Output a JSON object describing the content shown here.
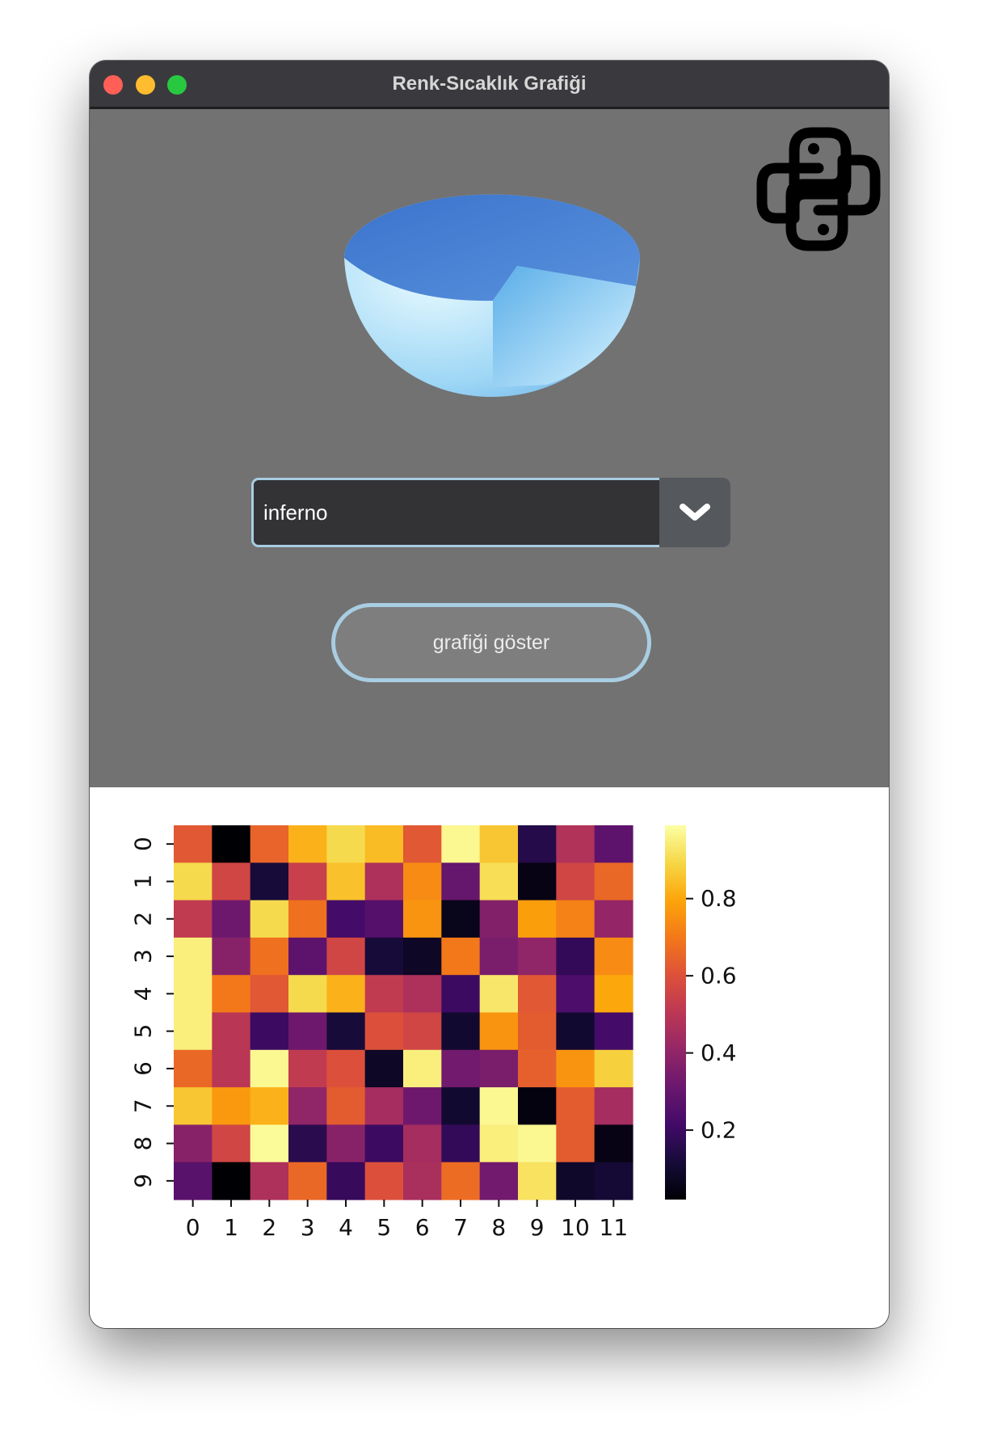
{
  "window": {
    "title": "Renk-Sıcaklık Grafiği"
  },
  "colormap_select": {
    "value": "inferno",
    "arrow_icon": "chevron-down-icon"
  },
  "show_button": {
    "label": "grafiği göster"
  },
  "colors": {
    "accent_border": "#a9cde2",
    "panel_bg": "#727272"
  },
  "chart_data": {
    "type": "heatmap",
    "colormap": "inferno",
    "x_ticks": [
      "0",
      "1",
      "2",
      "3",
      "4",
      "5",
      "6",
      "7",
      "8",
      "9",
      "10",
      "11"
    ],
    "y_ticks": [
      "0",
      "1",
      "2",
      "3",
      "4",
      "5",
      "6",
      "7",
      "8",
      "9"
    ],
    "colorbar_ticks": [
      "0.2",
      "0.4",
      "0.6",
      "0.8"
    ],
    "colorbar_range": [
      0.02,
      0.99
    ],
    "values": [
      [
        0.62,
        0.02,
        0.65,
        0.82,
        0.9,
        0.84,
        0.62,
        0.97,
        0.86,
        0.15,
        0.48,
        0.28
      ],
      [
        0.9,
        0.56,
        0.12,
        0.54,
        0.85,
        0.47,
        0.74,
        0.3,
        0.91,
        0.05,
        0.56,
        0.66
      ],
      [
        0.52,
        0.32,
        0.9,
        0.68,
        0.22,
        0.26,
        0.76,
        0.06,
        0.37,
        0.78,
        0.72,
        0.41
      ],
      [
        0.95,
        0.38,
        0.68,
        0.28,
        0.56,
        0.12,
        0.08,
        0.7,
        0.35,
        0.4,
        0.18,
        0.74
      ],
      [
        0.95,
        0.7,
        0.62,
        0.9,
        0.82,
        0.52,
        0.47,
        0.2,
        0.93,
        0.62,
        0.24,
        0.8
      ],
      [
        0.95,
        0.5,
        0.2,
        0.32,
        0.12,
        0.6,
        0.56,
        0.1,
        0.76,
        0.63,
        0.1,
        0.22
      ],
      [
        0.66,
        0.5,
        0.97,
        0.52,
        0.6,
        0.08,
        0.95,
        0.33,
        0.35,
        0.64,
        0.76,
        0.88
      ],
      [
        0.86,
        0.77,
        0.82,
        0.4,
        0.63,
        0.45,
        0.32,
        0.1,
        0.97,
        0.04,
        0.63,
        0.45
      ],
      [
        0.38,
        0.56,
        0.98,
        0.16,
        0.38,
        0.2,
        0.45,
        0.18,
        0.95,
        0.97,
        0.63,
        0.05
      ],
      [
        0.27,
        0.02,
        0.47,
        0.66,
        0.19,
        0.6,
        0.46,
        0.67,
        0.33,
        0.92,
        0.09,
        0.11
      ]
    ]
  }
}
